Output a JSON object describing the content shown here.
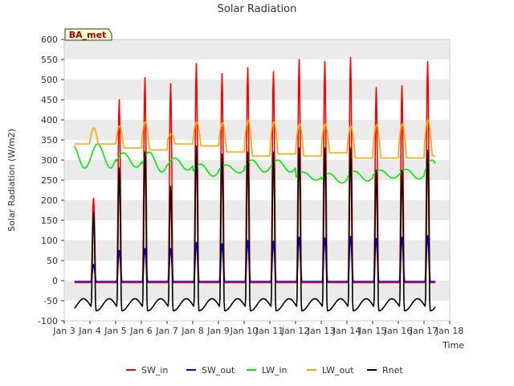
{
  "chart_data": {
    "type": "line",
    "title": "Solar Radiation",
    "xlabel": "Time",
    "ylabel": "Solar Radiation (W/m2)",
    "station_label": "BA_met",
    "xlim": [
      3,
      18
    ],
    "ylim": [
      -100,
      600
    ],
    "x_ticks": [
      3,
      4,
      5,
      6,
      7,
      8,
      9,
      10,
      11,
      12,
      13,
      14,
      15,
      16,
      17,
      18
    ],
    "x_tick_labels": [
      "Jan 3",
      "Jan 4",
      "Jan 5",
      "Jan 6",
      "Jan 7",
      "Jan 8",
      "Jan 9",
      "Jan 10",
      "Jan 11",
      "Jan 12",
      "Jan 13",
      "Jan 14",
      "Jan 15",
      "Jan 16",
      "Jan 17",
      "Jan 18"
    ],
    "y_ticks": [
      -100,
      -50,
      0,
      50,
      100,
      150,
      200,
      250,
      300,
      350,
      400,
      450,
      500,
      550,
      600
    ],
    "grid": "horizontal bands",
    "legend_position": "bottom",
    "series_start_day": 3.4,
    "series_end_day": 17.45,
    "days": [
      4,
      5,
      6,
      7,
      8,
      9,
      10,
      11,
      12,
      13,
      14,
      15,
      16,
      17
    ],
    "series": [
      {
        "name": "SW_in",
        "color": "#ff0000",
        "night_value": -5,
        "daily_peak": [
          205,
          450,
          505,
          490,
          540,
          515,
          530,
          520,
          550,
          545,
          555,
          480,
          485,
          545
        ]
      },
      {
        "name": "SW_out",
        "color": "#0000ff",
        "night_value": -2,
        "daily_peak": [
          40,
          75,
          80,
          80,
          95,
          92,
          100,
          98,
          108,
          106,
          110,
          105,
          108,
          112
        ]
      },
      {
        "name": "LW_in",
        "color": "#00ee00",
        "daily_mean": [
          310,
          300,
          295,
          290,
          275,
          278,
          285,
          285,
          260,
          255,
          260,
          265,
          265,
          275
        ],
        "daily_swing": [
          30,
          18,
          25,
          15,
          15,
          10,
          15,
          15,
          10,
          12,
          12,
          10,
          12,
          25
        ]
      },
      {
        "name": "LW_out",
        "color": "#ffa500",
        "daily_min": [
          340,
          330,
          325,
          340,
          335,
          320,
          310,
          315,
          310,
          318,
          305,
          305,
          305,
          310
        ],
        "daily_peak": [
          380,
          385,
          395,
          365,
          395,
          393,
          400,
          395,
          390,
          390,
          385,
          388,
          390,
          400
        ]
      },
      {
        "name": "Rnet",
        "color": "#000000",
        "night_value": -60,
        "daily_peak": [
          170,
          280,
          320,
          235,
          335,
          315,
          320,
          320,
          330,
          330,
          330,
          275,
          275,
          325
        ]
      }
    ]
  }
}
